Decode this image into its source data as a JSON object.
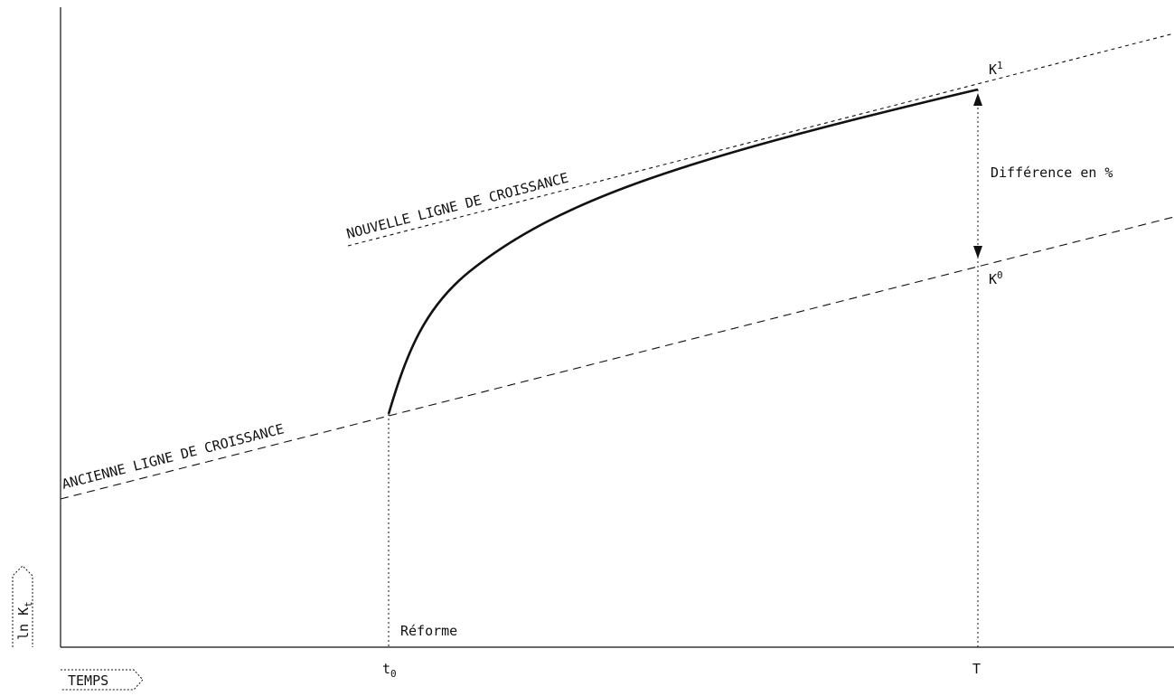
{
  "chart_data": {
    "type": "line",
    "title": "",
    "xlabel": "TEMPS",
    "ylabel": "ln K",
    "ylabel_subscript": "t",
    "grid": false,
    "x_ticks": [
      {
        "label": "t",
        "subscript": "0"
      },
      {
        "label": "T",
        "subscript": ""
      }
    ],
    "series": [
      {
        "name": "ANCIENNE LIGNE DE CROISSANCE",
        "style": "dashed",
        "points": [
          [
            0,
            0.3
          ],
          [
            1,
            0.87
          ]
        ]
      },
      {
        "name": "NOUVELLE LIGNE DE CROISSANCE",
        "style": "dashed",
        "points": [
          [
            0.25,
            0.73
          ],
          [
            1,
            1.0
          ]
        ]
      },
      {
        "name": "",
        "style": "solid",
        "points": [
          [
            0.3,
            0.48
          ],
          [
            0.32,
            0.58
          ],
          [
            0.35,
            0.65
          ],
          [
            0.4,
            0.71
          ],
          [
            0.48,
            0.77
          ],
          [
            0.6,
            0.82
          ],
          [
            0.75,
            0.86
          ],
          [
            0.87,
            0.89
          ]
        ]
      }
    ],
    "annotations": {
      "reform": "Réforme",
      "k1": "K",
      "k1_sup": "1",
      "k0": "K",
      "k0_sup": "0",
      "difference": "Différence en %"
    }
  }
}
